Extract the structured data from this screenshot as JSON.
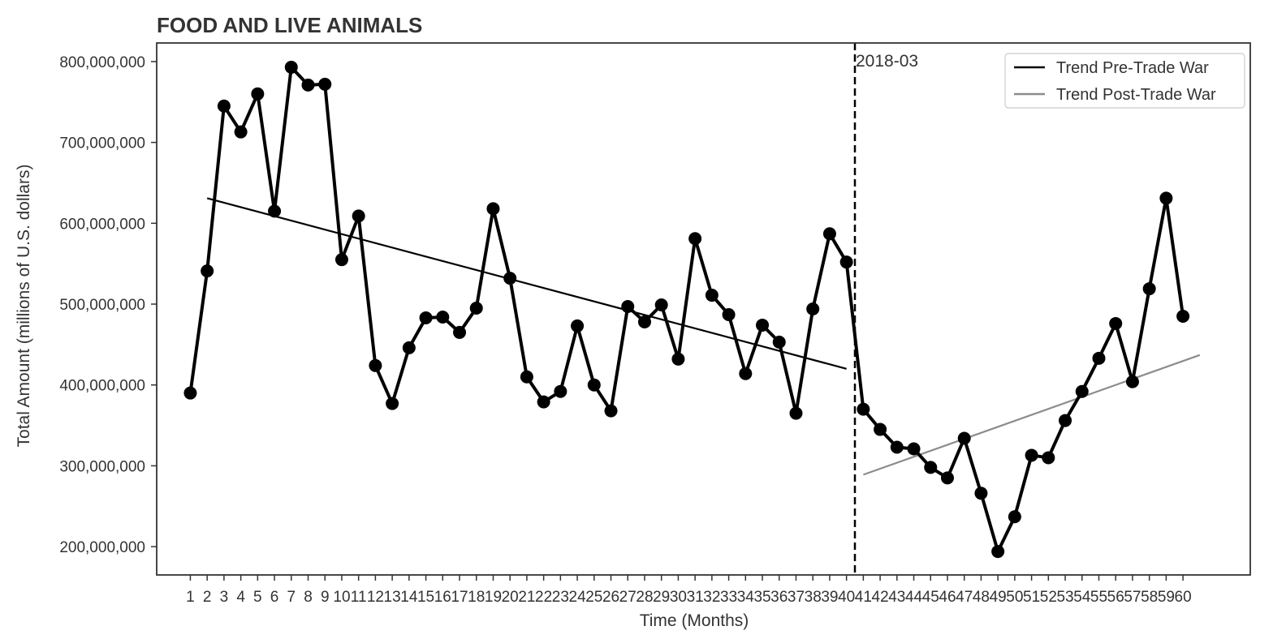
{
  "chart_data": {
    "type": "line",
    "title": "FOOD AND LIVE ANIMALS",
    "xlabel": "Time (Months)",
    "ylabel": "Total Amount (millions of U.S. dollars)",
    "x": [
      1,
      2,
      3,
      4,
      5,
      6,
      7,
      8,
      9,
      10,
      11,
      12,
      13,
      14,
      15,
      16,
      17,
      18,
      19,
      20,
      21,
      22,
      23,
      24,
      25,
      26,
      27,
      28,
      29,
      30,
      31,
      32,
      33,
      34,
      35,
      36,
      37,
      38,
      39,
      40,
      41,
      42,
      43,
      44,
      45,
      46,
      47,
      48,
      49,
      50,
      51,
      52,
      53,
      54,
      55,
      56,
      57,
      58,
      59,
      60
    ],
    "xtick_labels": [
      "1",
      "2",
      "3",
      "4",
      "5",
      "6",
      "7",
      "8",
      "9",
      "10",
      "11",
      "12",
      "13",
      "14",
      "15",
      "16",
      "17",
      "18",
      "19",
      "20",
      "21",
      "22",
      "23",
      "24",
      "25",
      "26",
      "27",
      "28",
      "29",
      "30",
      "31",
      "32",
      "33",
      "34",
      "35",
      "36",
      "37",
      "38",
      "39",
      "40",
      "41",
      "42",
      "43",
      "44",
      "45",
      "46",
      "47",
      "48",
      "49",
      "50",
      "51",
      "52",
      "53",
      "54",
      "55",
      "56",
      "57",
      "58",
      "59",
      "60"
    ],
    "series": [
      {
        "values": [
          390000000,
          541000000,
          745000000,
          713000000,
          760000000,
          615000000,
          793000000,
          771000000,
          772000000,
          555000000,
          609000000,
          424000000,
          377000000,
          446000000,
          483000000,
          484000000,
          465000000,
          495000000,
          618000000,
          532000000,
          410000000,
          379000000,
          392000000,
          473000000,
          400000000,
          368000000,
          497000000,
          478000000,
          499000000,
          432000000,
          581000000,
          511000000,
          487000000,
          414000000,
          474000000,
          453000000,
          365000000,
          494000000,
          587000000,
          552000000,
          370000000,
          345000000,
          323000000,
          321000000,
          298000000,
          285000000,
          334000000,
          266000000,
          194000000,
          237000000,
          313000000,
          310000000,
          356000000,
          392000000,
          433000000,
          476000000,
          404000000,
          519000000,
          631000000,
          485000000
        ],
        "color": "#000000"
      }
    ],
    "trend_lines": [
      {
        "name": "Trend Pre-Trade War",
        "x_start": 2,
        "x_end": 40,
        "y_start": 631000000,
        "y_end": 420000000,
        "color": "#000000"
      },
      {
        "name": "Trend Post-Trade War",
        "x_start": 41,
        "x_end": 61,
        "y_start": 289000000,
        "y_end": 437000000,
        "color": "#8c8c8c"
      }
    ],
    "vline": {
      "x": 40.5,
      "label": "2018-03",
      "style": "dashed",
      "color": "#000000"
    },
    "yticks": [
      200000000,
      300000000,
      400000000,
      500000000,
      600000000,
      700000000,
      800000000
    ],
    "ytick_labels": [
      "200,000,000",
      "300,000,000",
      "400,000,000",
      "500,000,000",
      "600,000,000",
      "700,000,000",
      "800,000,000"
    ],
    "xlim": [
      -1.0,
      64.0
    ],
    "ylim": [
      165000000,
      823000000
    ],
    "grid": false,
    "legend_position": "top-right"
  }
}
